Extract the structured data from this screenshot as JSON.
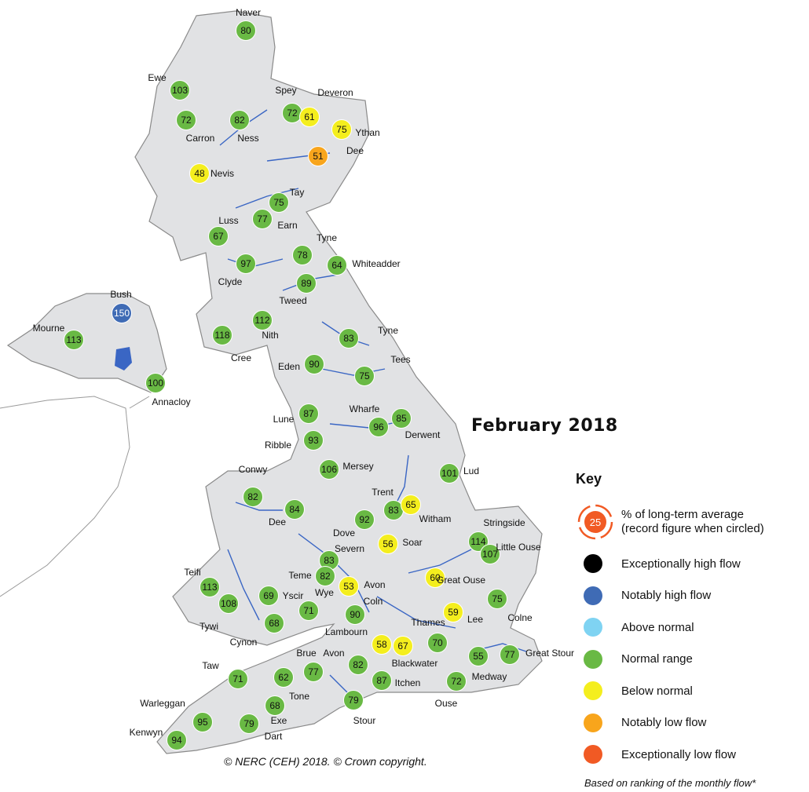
{
  "title": "February 2018",
  "copyright": "© NERC (CEH) 2018. © Crown copyright.",
  "colors": {
    "land": "#e1e2e4",
    "coast": "#8a8a8a",
    "river": "#3a66c4",
    "exceptionally_high": "#000000",
    "notably_high": "#3f6bb5",
    "above_normal": "#7fd3f2",
    "normal": "#69b944",
    "below_normal": "#f4ee1e",
    "notably_low": "#f8a51c",
    "exceptionally_low": "#f15a24"
  },
  "key": {
    "title": "Key",
    "example_value": "25",
    "example_text_1": "% of long-term average",
    "example_text_2": "(record figure when circled)",
    "items": [
      {
        "label": "Exceptionally high flow",
        "status": "exceptionally_high"
      },
      {
        "label": "Notably high flow",
        "status": "notably_high"
      },
      {
        "label": "Above normal",
        "status": "above_normal"
      },
      {
        "label": "Normal range",
        "status": "normal"
      },
      {
        "label": "Below normal",
        "status": "below_normal"
      },
      {
        "label": "Notably low flow",
        "status": "notably_low"
      },
      {
        "label": "Exceptionally low flow",
        "status": "exceptionally_low"
      }
    ],
    "note": "Based on ranking of the monthly flow*"
  },
  "stations": [
    {
      "river": "Naver",
      "value": "80",
      "status": "normal"
    },
    {
      "river": "Ewe",
      "value": "103",
      "status": "normal"
    },
    {
      "river": "Carron",
      "value": "72",
      "status": "normal"
    },
    {
      "river": "Ness",
      "value": "82",
      "status": "normal"
    },
    {
      "river": "Spey",
      "value": "72",
      "status": "normal"
    },
    {
      "river": "Deveron",
      "value": "61",
      "status": "below_normal"
    },
    {
      "river": "Ythan",
      "value": "75",
      "status": "below_normal"
    },
    {
      "river": "Dee",
      "value": "51",
      "status": "notably_low"
    },
    {
      "river": "Nevis",
      "value": "48",
      "status": "below_normal"
    },
    {
      "river": "Tay",
      "value": "75",
      "status": "normal"
    },
    {
      "river": "Earn",
      "value": "77",
      "status": "normal"
    },
    {
      "river": "Luss",
      "value": "67",
      "status": "normal"
    },
    {
      "river": "Tyne",
      "value": "78",
      "status": "normal"
    },
    {
      "river": "Whiteadder",
      "value": "64",
      "status": "normal"
    },
    {
      "river": "Clyde",
      "value": "97",
      "status": "normal"
    },
    {
      "river": "Tweed",
      "value": "89",
      "status": "normal"
    },
    {
      "river": "Bush",
      "value": "150",
      "status": "notably_high"
    },
    {
      "river": "Mourne",
      "value": "113",
      "status": "normal"
    },
    {
      "river": "Nith",
      "value": "112",
      "status": "normal"
    },
    {
      "river": "Cree",
      "value": "118",
      "status": "normal"
    },
    {
      "river": "Tyne",
      "value": "83",
      "status": "normal"
    },
    {
      "river": "Annacloy",
      "value": "100",
      "status": "normal"
    },
    {
      "river": "Eden",
      "value": "90",
      "status": "normal"
    },
    {
      "river": "Tees",
      "value": "75",
      "status": "normal"
    },
    {
      "river": "Lune",
      "value": "87",
      "status": "normal"
    },
    {
      "river": "Wharfe",
      "value": "96",
      "status": "normal"
    },
    {
      "river": "Derwent",
      "value": "85",
      "status": "normal"
    },
    {
      "river": "Ribble",
      "value": "93",
      "status": "normal"
    },
    {
      "river": "Mersey",
      "value": "106",
      "status": "normal"
    },
    {
      "river": "Lud",
      "value": "101",
      "status": "normal"
    },
    {
      "river": "Conwy",
      "value": "82",
      "status": "normal"
    },
    {
      "river": "Dee",
      "value": "84",
      "status": "normal"
    },
    {
      "river": "Trent",
      "value": "83",
      "status": "normal"
    },
    {
      "river": "Witham",
      "value": "65",
      "status": "below_normal"
    },
    {
      "river": "Dove",
      "value": "92",
      "status": "normal"
    },
    {
      "river": "Soar",
      "value": "56",
      "status": "below_normal"
    },
    {
      "river": "Stringside",
      "value": "114",
      "status": "normal"
    },
    {
      "river": "Little Ouse",
      "value": "107",
      "status": "normal"
    },
    {
      "river": "Severn",
      "value": "83",
      "status": "normal"
    },
    {
      "river": "Teifi",
      "value": "113",
      "status": "normal"
    },
    {
      "river": "Teme",
      "value": "82",
      "status": "normal"
    },
    {
      "river": "Avon",
      "value": "53",
      "status": "below_normal"
    },
    {
      "river": "Great Ouse",
      "value": "60",
      "status": "below_normal"
    },
    {
      "river": "Yscir",
      "value": "69",
      "status": "normal"
    },
    {
      "river": "Tywi",
      "value": "108",
      "status": "normal"
    },
    {
      "river": "Wye",
      "value": "71",
      "status": "normal"
    },
    {
      "river": "Colne",
      "value": "75",
      "status": "normal"
    },
    {
      "river": "Coln",
      "value": "90",
      "status": "normal"
    },
    {
      "river": "Lee",
      "value": "59",
      "status": "below_normal"
    },
    {
      "river": "Cynon",
      "value": "68",
      "status": "normal"
    },
    {
      "river": "Thames",
      "value": "70",
      "status": "normal"
    },
    {
      "river": "Lambourn",
      "value": "58",
      "status": "below_normal"
    },
    {
      "river": "Blackwater",
      "value": "67",
      "status": "below_normal"
    },
    {
      "river": "Great Stour",
      "value": "77",
      "status": "normal"
    },
    {
      "river": "Medway",
      "value": "55",
      "status": "normal"
    },
    {
      "river": "Ouse",
      "value": "72",
      "status": "normal"
    },
    {
      "river": "Taw",
      "value": "71",
      "status": "normal"
    },
    {
      "river": "Tone",
      "value": "62",
      "status": "normal"
    },
    {
      "river": "Brue",
      "value": "77",
      "status": "normal"
    },
    {
      "river": "Avon",
      "value": "82",
      "status": "normal"
    },
    {
      "river": "Itchen",
      "value": "87",
      "status": "normal"
    },
    {
      "river": "Stour",
      "value": "79",
      "status": "normal"
    },
    {
      "river": "Exe",
      "value": "68",
      "status": "normal"
    },
    {
      "river": "Warleggan",
      "value": "95",
      "status": "normal"
    },
    {
      "river": "Dart",
      "value": "79",
      "status": "normal"
    },
    {
      "river": "Kenwyn",
      "value": "94",
      "status": "normal"
    }
  ]
}
